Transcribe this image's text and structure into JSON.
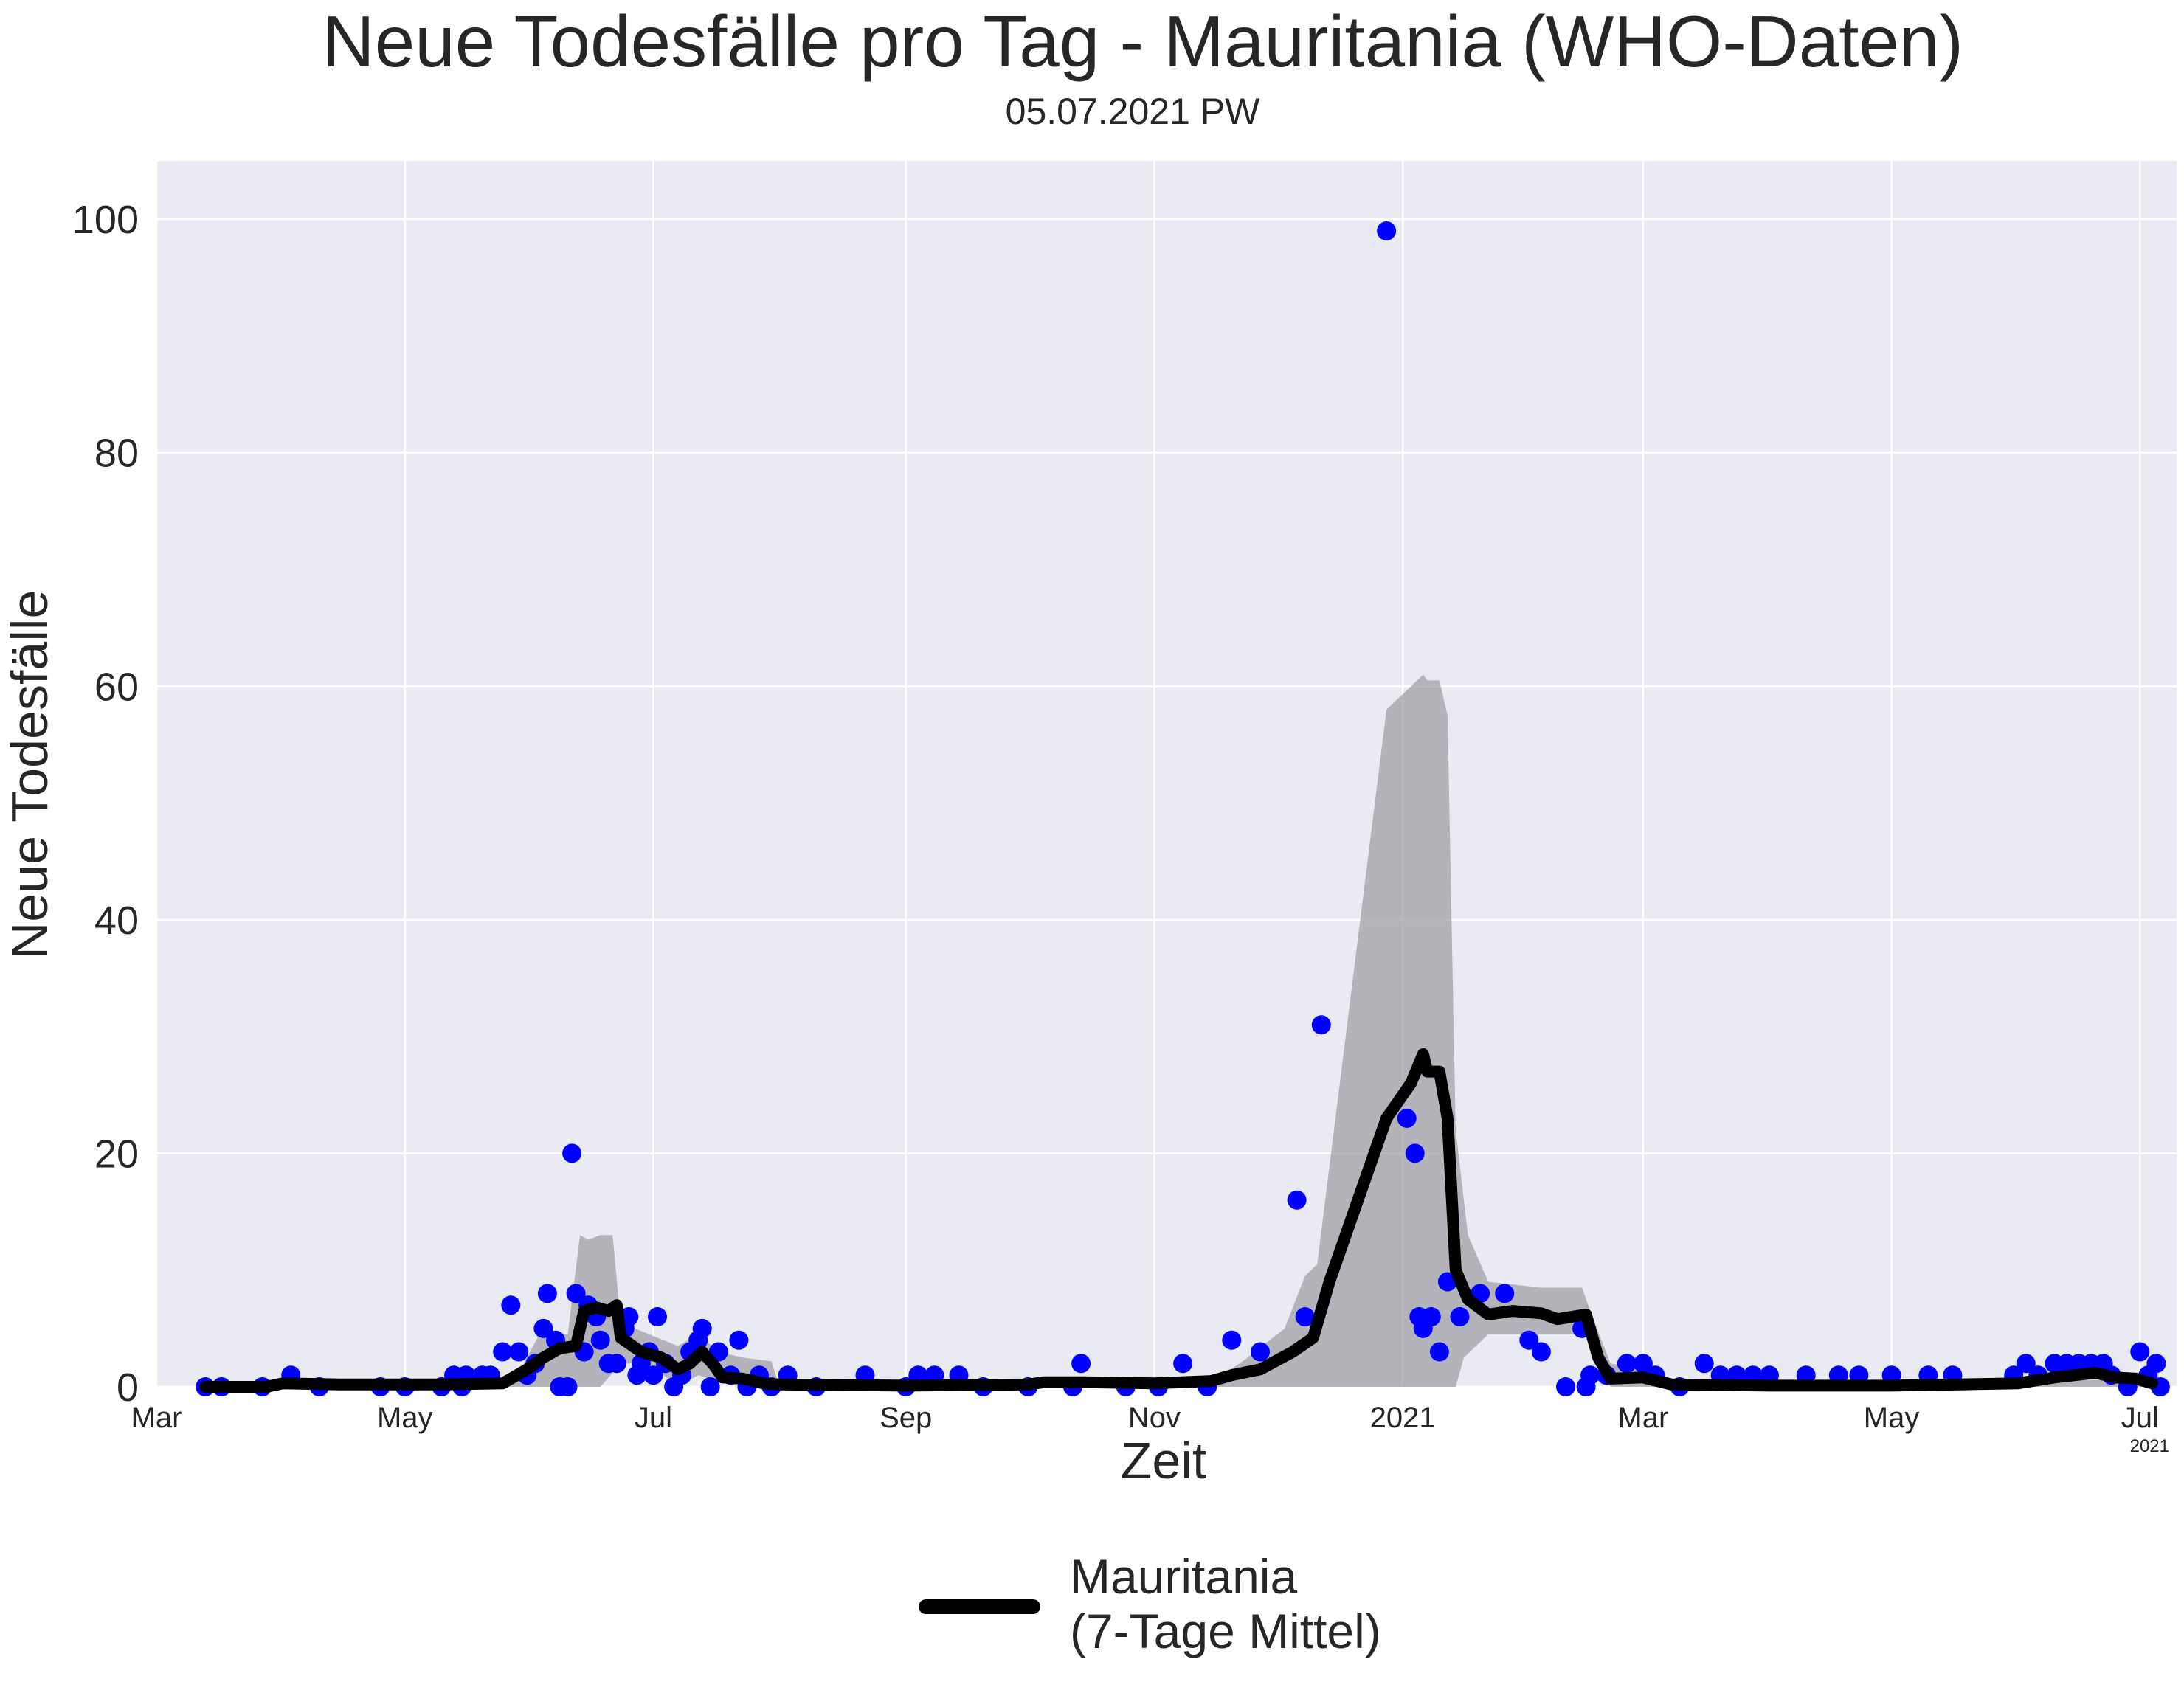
{
  "chart_data": {
    "type": "line",
    "title": "Neue Todesfälle pro Tag - Mauritania (WHO-Daten)",
    "subtitle": "05.07.2021 PW",
    "xlabel": "Zeit",
    "ylabel": "Neue Todesfälle",
    "x_offset_label": "2021",
    "x_range": [
      "2020-03-01",
      "2021-07-10"
    ],
    "ylim": [
      0,
      105
    ],
    "y_ticks": [
      0,
      20,
      40,
      60,
      80,
      100
    ],
    "x_ticks": [
      {
        "date": "2020-03-01",
        "label": "Mar"
      },
      {
        "date": "2020-05-01",
        "label": "May"
      },
      {
        "date": "2020-07-01",
        "label": "Jul"
      },
      {
        "date": "2020-09-01",
        "label": "Sep"
      },
      {
        "date": "2020-11-01",
        "label": "Nov"
      },
      {
        "date": "2021-01-01",
        "label": "2021"
      },
      {
        "date": "2021-03-01",
        "label": "Mar"
      },
      {
        "date": "2021-05-01",
        "label": "May"
      },
      {
        "date": "2021-07-01",
        "label": "Jul"
      }
    ],
    "grid": true,
    "legend_position": "bottom-center",
    "colors": {
      "background": "#eaeaf2",
      "grid": "#ffffff",
      "points": "#0000ff",
      "line": "#000000",
      "band": "#a0a0a5"
    },
    "series": [
      {
        "name": "Mauritania\n(7-Tage Mittel)",
        "kind": "line",
        "points": [
          [
            "2020-03-13",
            0
          ],
          [
            "2020-03-28",
            0
          ],
          [
            "2020-04-01",
            0.3
          ],
          [
            "2020-04-15",
            0.2
          ],
          [
            "2020-05-10",
            0.2
          ],
          [
            "2020-05-25",
            0.3
          ],
          [
            "2020-05-31",
            1.5
          ],
          [
            "2020-06-04",
            2.5
          ],
          [
            "2020-06-08",
            3.3
          ],
          [
            "2020-06-12",
            3.5
          ],
          [
            "2020-06-14",
            6.5
          ],
          [
            "2020-06-17",
            6.8
          ],
          [
            "2020-06-20",
            6.5
          ],
          [
            "2020-06-22",
            7.0
          ],
          [
            "2020-06-23",
            4.2
          ],
          [
            "2020-06-28",
            3.0
          ],
          [
            "2020-07-03",
            2.5
          ],
          [
            "2020-07-07",
            1.5
          ],
          [
            "2020-07-10",
            2.0
          ],
          [
            "2020-07-13",
            3.0
          ],
          [
            "2020-07-16",
            1.8
          ],
          [
            "2020-07-18",
            0.8
          ],
          [
            "2020-07-23",
            0.7
          ],
          [
            "2020-07-28",
            0.3
          ],
          [
            "2020-08-01",
            0.2
          ],
          [
            "2020-09-01",
            0.1
          ],
          [
            "2020-10-01",
            0.2
          ],
          [
            "2020-10-05",
            0.4
          ],
          [
            "2020-10-15",
            0.4
          ],
          [
            "2020-11-01",
            0.3
          ],
          [
            "2020-11-15",
            0.5
          ],
          [
            "2020-11-20",
            1.0
          ],
          [
            "2020-11-27",
            1.5
          ],
          [
            "2020-12-05",
            3.0
          ],
          [
            "2020-12-10",
            4.2
          ],
          [
            "2020-12-14",
            9.0
          ],
          [
            "2020-12-21",
            16.0
          ],
          [
            "2020-12-28",
            23.0
          ],
          [
            "2021-01-03",
            26.0
          ],
          [
            "2021-01-06",
            28.5
          ],
          [
            "2021-01-07",
            27.0
          ],
          [
            "2021-01-10",
            27.0
          ],
          [
            "2021-01-12",
            23.0
          ],
          [
            "2021-01-14",
            10.0
          ],
          [
            "2021-01-17",
            7.5
          ],
          [
            "2021-01-22",
            6.2
          ],
          [
            "2021-01-28",
            6.5
          ],
          [
            "2021-02-04",
            6.3
          ],
          [
            "2021-02-08",
            5.8
          ],
          [
            "2021-02-15",
            6.2
          ],
          [
            "2021-02-18",
            2.5
          ],
          [
            "2021-02-21",
            0.7
          ],
          [
            "2021-03-01",
            0.8
          ],
          [
            "2021-03-08",
            0.2
          ],
          [
            "2021-04-01",
            0.1
          ],
          [
            "2021-05-01",
            0.1
          ],
          [
            "2021-06-01",
            0.3
          ],
          [
            "2021-06-10",
            0.8
          ],
          [
            "2021-06-15",
            1.0
          ],
          [
            "2021-06-20",
            1.2
          ],
          [
            "2021-06-25",
            0.8
          ],
          [
            "2021-06-30",
            0.7
          ],
          [
            "2021-07-04",
            0.3
          ]
        ]
      },
      {
        "kind": "scatter",
        "points": [
          [
            "2020-03-13",
            0
          ],
          [
            "2020-03-17",
            0
          ],
          [
            "2020-03-27",
            0
          ],
          [
            "2020-04-03",
            1
          ],
          [
            "2020-04-10",
            0
          ],
          [
            "2020-04-25",
            0
          ],
          [
            "2020-05-01",
            0
          ],
          [
            "2020-05-10",
            0
          ],
          [
            "2020-05-15",
            0
          ],
          [
            "2020-05-13",
            1
          ],
          [
            "2020-05-16",
            1
          ],
          [
            "2020-05-20",
            1
          ],
          [
            "2020-05-22",
            1
          ],
          [
            "2020-05-25",
            3
          ],
          [
            "2020-05-27",
            7
          ],
          [
            "2020-05-29",
            3
          ],
          [
            "2020-05-31",
            1
          ],
          [
            "2020-06-02",
            2
          ],
          [
            "2020-06-04",
            5
          ],
          [
            "2020-06-05",
            8
          ],
          [
            "2020-06-07",
            4
          ],
          [
            "2020-06-08",
            0
          ],
          [
            "2020-06-10",
            0
          ],
          [
            "2020-06-11",
            20
          ],
          [
            "2020-06-12",
            8
          ],
          [
            "2020-06-14",
            3
          ],
          [
            "2020-06-15",
            7
          ],
          [
            "2020-06-17",
            6
          ],
          [
            "2020-06-18",
            4
          ],
          [
            "2020-06-20",
            2
          ],
          [
            "2020-06-22",
            2
          ],
          [
            "2020-06-24",
            5
          ],
          [
            "2020-06-25",
            6
          ],
          [
            "2020-06-27",
            1
          ],
          [
            "2020-06-28",
            2
          ],
          [
            "2020-06-30",
            3
          ],
          [
            "2020-07-01",
            1
          ],
          [
            "2020-07-02",
            6
          ],
          [
            "2020-07-04",
            2
          ],
          [
            "2020-07-06",
            0
          ],
          [
            "2020-07-08",
            1
          ],
          [
            "2020-07-10",
            3
          ],
          [
            "2020-07-12",
            4
          ],
          [
            "2020-07-13",
            5
          ],
          [
            "2020-07-15",
            0
          ],
          [
            "2020-07-17",
            3
          ],
          [
            "2020-07-20",
            1
          ],
          [
            "2020-07-22",
            4
          ],
          [
            "2020-07-24",
            0
          ],
          [
            "2020-07-27",
            1
          ],
          [
            "2020-07-30",
            0
          ],
          [
            "2020-08-03",
            1
          ],
          [
            "2020-08-10",
            0
          ],
          [
            "2020-08-22",
            1
          ],
          [
            "2020-09-01",
            0
          ],
          [
            "2020-09-04",
            1
          ],
          [
            "2020-09-08",
            1
          ],
          [
            "2020-09-14",
            1
          ],
          [
            "2020-09-20",
            0
          ],
          [
            "2020-10-01",
            0
          ],
          [
            "2020-10-12",
            0
          ],
          [
            "2020-10-14",
            2
          ],
          [
            "2020-10-25",
            0
          ],
          [
            "2020-11-02",
            0
          ],
          [
            "2020-11-08",
            2
          ],
          [
            "2020-11-14",
            0
          ],
          [
            "2020-11-20",
            4
          ],
          [
            "2020-11-27",
            3
          ],
          [
            "2020-12-06",
            16
          ],
          [
            "2020-12-08",
            6
          ],
          [
            "2020-12-12",
            31
          ],
          [
            "2020-12-28",
            99
          ],
          [
            "2021-01-02",
            23
          ],
          [
            "2021-01-04",
            20
          ],
          [
            "2021-01-05",
            6
          ],
          [
            "2021-01-06",
            5
          ],
          [
            "2021-01-08",
            6
          ],
          [
            "2021-01-10",
            3
          ],
          [
            "2021-01-12",
            9
          ],
          [
            "2021-01-15",
            6
          ],
          [
            "2021-01-20",
            8
          ],
          [
            "2021-01-26",
            8
          ],
          [
            "2021-02-01",
            4
          ],
          [
            "2021-02-04",
            3
          ],
          [
            "2021-02-10",
            0
          ],
          [
            "2021-02-14",
            5
          ],
          [
            "2021-02-15",
            0
          ],
          [
            "2021-02-16",
            1
          ],
          [
            "2021-02-20",
            1
          ],
          [
            "2021-02-25",
            2
          ],
          [
            "2021-03-01",
            2
          ],
          [
            "2021-03-04",
            1
          ],
          [
            "2021-03-10",
            0
          ],
          [
            "2021-03-16",
            2
          ],
          [
            "2021-03-20",
            1
          ],
          [
            "2021-03-24",
            1
          ],
          [
            "2021-03-28",
            1
          ],
          [
            "2021-04-01",
            1
          ],
          [
            "2021-04-10",
            1
          ],
          [
            "2021-04-18",
            1
          ],
          [
            "2021-04-23",
            1
          ],
          [
            "2021-05-01",
            1
          ],
          [
            "2021-05-10",
            1
          ],
          [
            "2021-05-16",
            1
          ],
          [
            "2021-05-31",
            1
          ],
          [
            "2021-06-03",
            2
          ],
          [
            "2021-06-06",
            1
          ],
          [
            "2021-06-10",
            2
          ],
          [
            "2021-06-13",
            2
          ],
          [
            "2021-06-16",
            2
          ],
          [
            "2021-06-19",
            2
          ],
          [
            "2021-06-22",
            2
          ],
          [
            "2021-06-24",
            1
          ],
          [
            "2021-06-28",
            0
          ],
          [
            "2021-07-01",
            3
          ],
          [
            "2021-07-03",
            1
          ],
          [
            "2021-07-05",
            2
          ],
          [
            "2021-07-06",
            0
          ]
        ]
      },
      {
        "kind": "band",
        "upper": [
          [
            "2020-03-13",
            0
          ],
          [
            "2020-05-28",
            0.5
          ],
          [
            "2020-06-03",
            4.5
          ],
          [
            "2020-06-10",
            4.5
          ],
          [
            "2020-06-13",
            13
          ],
          [
            "2020-06-15",
            12.6
          ],
          [
            "2020-06-18",
            13
          ],
          [
            "2020-06-21",
            13
          ],
          [
            "2020-06-23",
            5.5
          ],
          [
            "2020-06-30",
            4.5
          ],
          [
            "2020-07-07",
            3.5
          ],
          [
            "2020-07-12",
            4.5
          ],
          [
            "2020-07-17",
            3.0
          ],
          [
            "2020-07-23",
            2.5
          ],
          [
            "2020-07-30",
            2.2
          ],
          [
            "2020-08-01",
            0
          ],
          [
            "2020-11-15",
            0.5
          ],
          [
            "2020-11-22",
            2.0
          ],
          [
            "2020-12-03",
            5.0
          ],
          [
            "2020-12-08",
            9.5
          ],
          [
            "2020-12-11",
            10.5
          ],
          [
            "2020-12-28",
            58
          ],
          [
            "2021-01-06",
            61
          ],
          [
            "2021-01-07",
            60.5
          ],
          [
            "2021-01-10",
            60.5
          ],
          [
            "2021-01-12",
            57.5
          ],
          [
            "2021-01-14",
            22
          ],
          [
            "2021-01-17",
            13
          ],
          [
            "2021-01-22",
            9.0
          ],
          [
            "2021-02-04",
            8.5
          ],
          [
            "2021-02-14",
            8.5
          ],
          [
            "2021-02-16",
            6.5
          ],
          [
            "2021-02-21",
            2.0
          ],
          [
            "2021-03-01",
            1.5
          ],
          [
            "2021-03-08",
            0.5
          ],
          [
            "2021-07-04",
            0.6
          ]
        ],
        "lower": [
          [
            "2021-07-04",
            0
          ],
          [
            "2021-02-21",
            0
          ],
          [
            "2021-02-15",
            4.5
          ],
          [
            "2021-02-04",
            4.5
          ],
          [
            "2021-01-22",
            4.5
          ],
          [
            "2021-01-16",
            2.5
          ],
          [
            "2021-01-14",
            0
          ],
          [
            "2020-12-10",
            0
          ],
          [
            "2020-11-15",
            0
          ],
          [
            "2020-07-30",
            0
          ],
          [
            "2020-07-23",
            0
          ],
          [
            "2020-07-17",
            0.5
          ],
          [
            "2020-07-12",
            1.0
          ],
          [
            "2020-07-07",
            0
          ],
          [
            "2020-06-30",
            2.0
          ],
          [
            "2020-06-23",
            2.0
          ],
          [
            "2020-06-18",
            0
          ],
          [
            "2020-06-14",
            0
          ],
          [
            "2020-06-10",
            0
          ],
          [
            "2020-06-03",
            0
          ],
          [
            "2020-05-28",
            0
          ],
          [
            "2020-03-13",
            0
          ]
        ]
      }
    ]
  }
}
